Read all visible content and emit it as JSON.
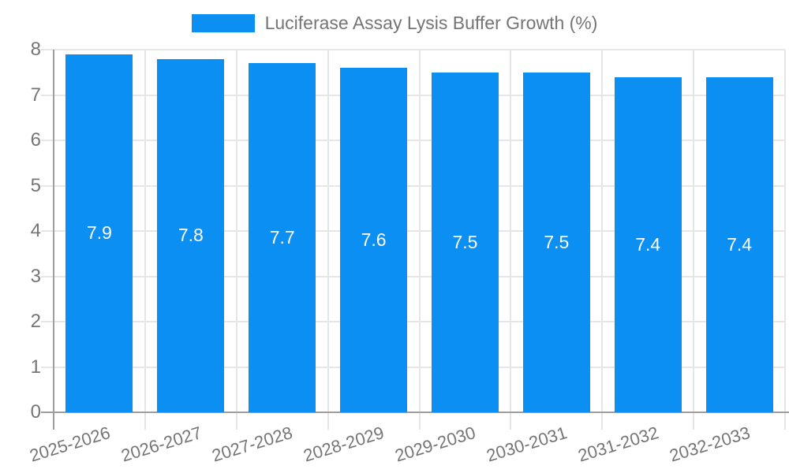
{
  "chart_data": {
    "type": "bar",
    "title": "Luciferase Assay Lysis Buffer Growth (%)",
    "legend": {
      "position": "top",
      "entries": [
        "Luciferase Assay Lysis Buffer Growth (%)"
      ]
    },
    "categories": [
      "2025-2026",
      "2026-2027",
      "2027-2028",
      "2028-2029",
      "2029-2030",
      "2030-2031",
      "2031-2032",
      "2032-2033"
    ],
    "values": [
      7.9,
      7.8,
      7.7,
      7.6,
      7.5,
      7.5,
      7.4,
      7.4
    ],
    "value_labels": [
      "7.9",
      "7.8",
      "7.7",
      "7.6",
      "7.5",
      "7.5",
      "7.4",
      "7.4"
    ],
    "xlabel": "",
    "ylabel": "",
    "ylim": [
      0,
      8
    ],
    "yticks": [
      0,
      1,
      2,
      3,
      4,
      5,
      6,
      7,
      8
    ],
    "grid": true,
    "colors": {
      "bar": "#0b8ff2",
      "value_label": "#ffffff",
      "text": "#757575",
      "gridline": "#e6e6e6",
      "axis": "#9e9e9e"
    }
  }
}
